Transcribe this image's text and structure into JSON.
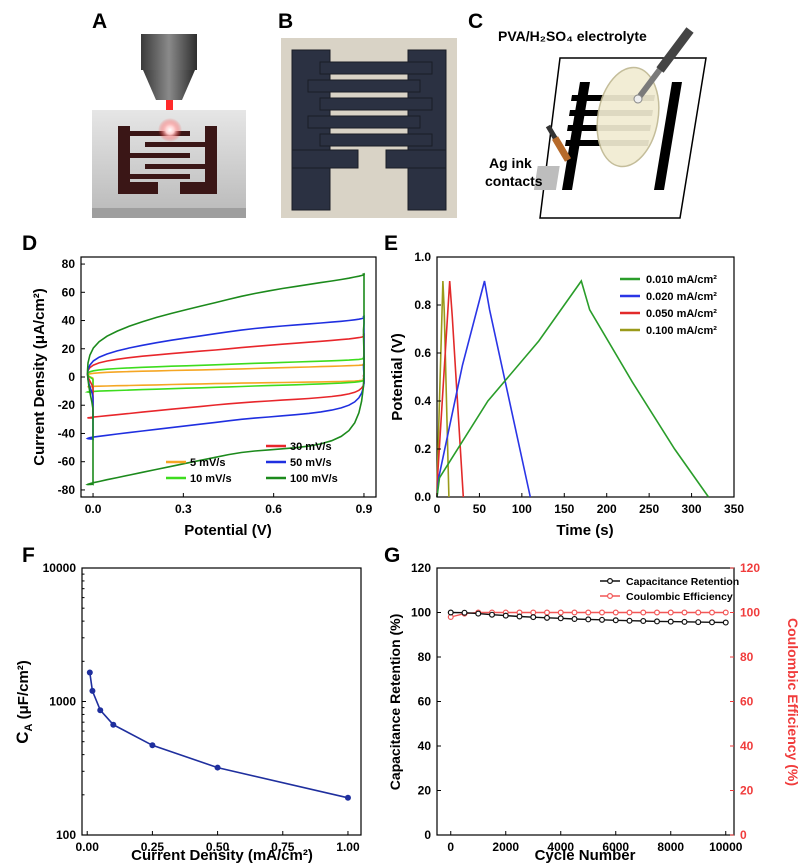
{
  "panels": {
    "a": {
      "letter": "A"
    },
    "b": {
      "letter": "B"
    },
    "c": {
      "letter": "C",
      "electrolyte_label": "PVA/H₂SO₄ electrolyte",
      "contacts_line1": "Ag ink",
      "contacts_line2": "contacts"
    },
    "d": {
      "letter": "D"
    },
    "e": {
      "letter": "E"
    },
    "f": {
      "letter": "F"
    },
    "g": {
      "letter": "G"
    }
  },
  "chart_data": [
    {
      "id": "D",
      "type": "line",
      "xlabel": "Potential (V)",
      "ylabel": "Current Density (μA/cm²)",
      "xlim": [
        -0.04,
        0.94
      ],
      "ylim": [
        -85,
        85
      ],
      "xticks": [
        0.0,
        0.3,
        0.6,
        0.9
      ],
      "xtick_labels": [
        "0.0",
        "0.3",
        "0.6",
        "0.9"
      ],
      "yticks": [
        -80,
        -60,
        -40,
        -20,
        0,
        20,
        40,
        60,
        80
      ],
      "ytick_labels": [
        "-80",
        "-60",
        "-40",
        "-20",
        "0",
        "20",
        "40",
        "60",
        "80"
      ],
      "legend_position": "bottom-right",
      "series": [
        {
          "name": "5 mV/s",
          "color": "#f5a623",
          "lower": [
            [
              0,
              -7
            ],
            [
              0.02,
              -6.5
            ],
            [
              0.45,
              -4.5
            ],
            [
              0.85,
              -3
            ],
            [
              0.9,
              -1
            ]
          ],
          "upper": [
            [
              0,
              -1
            ],
            [
              0.02,
              3
            ],
            [
              0.45,
              5.5
            ],
            [
              0.85,
              8
            ],
            [
              0.9,
              9
            ]
          ]
        },
        {
          "name": "10 mV/s",
          "color": "#3ddc1e",
          "lower": [
            [
              0,
              -11
            ],
            [
              0.02,
              -10
            ],
            [
              0.45,
              -7
            ],
            [
              0.85,
              -4
            ],
            [
              0.9,
              -1
            ]
          ],
          "upper": [
            [
              0,
              -2
            ],
            [
              0.02,
              5
            ],
            [
              0.45,
              9
            ],
            [
              0.85,
              12
            ],
            [
              0.9,
              14
            ]
          ]
        },
        {
          "name": "30 mV/s",
          "color": "#e8262b",
          "lower": [
            [
              0,
              -29
            ],
            [
              0.02,
              -28
            ],
            [
              0.45,
              -19
            ],
            [
              0.85,
              -12
            ],
            [
              0.9,
              2
            ]
          ],
          "upper": [
            [
              0,
              -8
            ],
            [
              0.02,
              10
            ],
            [
              0.45,
              20
            ],
            [
              0.85,
              27
            ],
            [
              0.9,
              30
            ]
          ]
        },
        {
          "name": "50 mV/s",
          "color": "#1f2fe0",
          "lower": [
            [
              0,
              -44
            ],
            [
              0.02,
              -42
            ],
            [
              0.45,
              -31
            ],
            [
              0.85,
              -20
            ],
            [
              0.9,
              10
            ]
          ],
          "upper": [
            [
              0,
              -15
            ],
            [
              0.02,
              14
            ],
            [
              0.45,
              32
            ],
            [
              0.85,
              40
            ],
            [
              0.9,
              43
            ]
          ]
        },
        {
          "name": "100 mV/s",
          "color": "#1c8a1c",
          "lower": [
            [
              0,
              -76
            ],
            [
              0.02,
              -74
            ],
            [
              0.45,
              -55
            ],
            [
              0.85,
              -38
            ],
            [
              0.9,
              38
            ]
          ],
          "upper": [
            [
              0,
              -25
            ],
            [
              0.02,
              25
            ],
            [
              0.45,
              55
            ],
            [
              0.85,
              70
            ],
            [
              0.9,
              73
            ]
          ]
        }
      ]
    },
    {
      "id": "E",
      "type": "line",
      "xlabel": "Time (s)",
      "ylabel": "Potential (V)",
      "xlim": [
        0,
        350
      ],
      "ylim": [
        0,
        1.0
      ],
      "xticks": [
        0,
        50,
        100,
        150,
        200,
        250,
        300,
        350
      ],
      "xtick_labels": [
        "0",
        "50",
        "100",
        "150",
        "200",
        "250",
        "300",
        "350"
      ],
      "yticks": [
        0.0,
        0.2,
        0.4,
        0.6,
        0.8,
        1.0
      ],
      "ytick_labels": [
        "0.0",
        "0.2",
        "0.4",
        "0.6",
        "0.8",
        "1.0"
      ],
      "legend_position": "top-right",
      "series": [
        {
          "name": "0.010 mA/cm²",
          "color": "#2a9d2a",
          "x": [
            0,
            3,
            60,
            120,
            170,
            180,
            230,
            280,
            320
          ],
          "y": [
            0,
            0.08,
            0.4,
            0.65,
            0.9,
            0.78,
            0.48,
            0.2,
            0
          ]
        },
        {
          "name": "0.020 mA/cm²",
          "color": "#2a35e6",
          "x": [
            0,
            2,
            30,
            56,
            62,
            110
          ],
          "y": [
            0,
            0.08,
            0.55,
            0.9,
            0.78,
            0
          ]
        },
        {
          "name": "0.050 mA/cm²",
          "color": "#e22a2a",
          "x": [
            0,
            1,
            15,
            18,
            31
          ],
          "y": [
            0,
            0.1,
            0.9,
            0.75,
            0
          ]
        },
        {
          "name": "0.100 mA/cm²",
          "color": "#9a9a1a",
          "x": [
            0,
            0.5,
            7,
            8.5,
            14
          ],
          "y": [
            0,
            0.1,
            0.9,
            0.78,
            0
          ]
        }
      ]
    },
    {
      "id": "F",
      "type": "line",
      "xlabel": "Current Density (mA/cm²)",
      "ylabel": "CA (μF/cm²)",
      "ylabel_main": "C",
      "ylabel_sub": "A",
      "ylabel_rest": " (μF/cm²)",
      "yscale": "log",
      "xlim": [
        -0.02,
        1.05
      ],
      "ylim": [
        100,
        10000
      ],
      "xticks": [
        0.0,
        0.25,
        0.5,
        0.75,
        1.0
      ],
      "xtick_labels": [
        "0.00",
        "0.25",
        "0.50",
        "0.75",
        "1.00"
      ],
      "yticks": [
        100,
        1000,
        10000
      ],
      "ytick_labels": [
        "100",
        "1000",
        "10000"
      ],
      "series": [
        {
          "name": "CA",
          "color": "#1f2f9e",
          "x": [
            0.01,
            0.02,
            0.05,
            0.1,
            0.25,
            0.5,
            1.0
          ],
          "y": [
            1650,
            1200,
            860,
            670,
            470,
            320,
            190
          ]
        }
      ]
    },
    {
      "id": "G",
      "type": "line",
      "xlabel": "Cycle Number",
      "ylabel": "Capacitance Retention (%)",
      "ylabel_right": "Coulombic Efficiency (%)",
      "xlim": [
        -500,
        10300
      ],
      "ylim": [
        0,
        120
      ],
      "xticks": [
        0,
        2000,
        4000,
        6000,
        8000,
        10000
      ],
      "xtick_labels": [
        "0",
        "2000",
        "4000",
        "6000",
        "8000",
        "10000"
      ],
      "yticks": [
        0,
        20,
        40,
        60,
        80,
        100,
        120
      ],
      "ytick_labels": [
        "0",
        "20",
        "40",
        "60",
        "80",
        "100",
        "120"
      ],
      "legend_position": "top-right",
      "series": [
        {
          "name": "Capacitance Retention",
          "color": "#111111",
          "x": [
            0,
            500,
            1000,
            1500,
            2000,
            2500,
            3000,
            3500,
            4000,
            4500,
            5000,
            5500,
            6000,
            6500,
            7000,
            7500,
            8000,
            8500,
            9000,
            9500,
            10000
          ],
          "y": [
            100,
            99.9,
            99.5,
            99,
            98.6,
            98.2,
            97.9,
            97.6,
            97.4,
            97.1,
            96.9,
            96.7,
            96.5,
            96.3,
            96.2,
            96,
            95.9,
            95.8,
            95.7,
            95.6,
            95.5
          ]
        },
        {
          "name": "Coulombic Efficiency",
          "color": "#f25757",
          "x": [
            0,
            500,
            1000,
            1500,
            2000,
            2500,
            3000,
            3500,
            4000,
            4500,
            5000,
            5500,
            6000,
            6500,
            7000,
            7500,
            8000,
            8500,
            9000,
            9500,
            10000
          ],
          "y": [
            98,
            99.5,
            100,
            100,
            100,
            100,
            100,
            100,
            100,
            100,
            100,
            100,
            100,
            100,
            100,
            100,
            100,
            100,
            100,
            100,
            100
          ]
        }
      ]
    }
  ]
}
